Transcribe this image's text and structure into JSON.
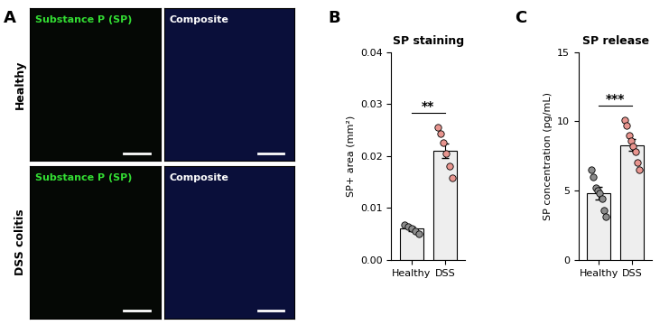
{
  "panel_labels": [
    "A",
    "B",
    "C"
  ],
  "image_panel": {
    "columns": [
      "Substance P (SP)",
      "Composite"
    ],
    "rows": [
      "Healthy",
      "DSS colitis"
    ]
  },
  "chart_data": [
    {
      "type": "bar",
      "title": "SP staining",
      "y_label": "SP+ area (mm²)",
      "categories": [
        "Healthy",
        "DSS"
      ],
      "values": [
        0.006,
        0.021
      ],
      "errors": [
        0.0005,
        0.0014
      ],
      "points": [
        [
          0.0068,
          0.0064,
          0.006,
          0.0055,
          0.005
        ],
        [
          0.0255,
          0.0243,
          0.0225,
          0.0205,
          0.018,
          0.0158
        ]
      ],
      "color": "#eeeeee",
      "colors": [
        "#8c8c8c",
        "#e8958f"
      ],
      "significance": "**",
      "ylim": [
        0,
        0.04
      ],
      "yticks": [
        {
          "value": 0,
          "label": "0.00"
        },
        0.01,
        0.02,
        0.03,
        0.04
      ]
    },
    {
      "type": "bar",
      "title": "SP release",
      "y_label": "SP concentration (pg/mL)",
      "categories": [
        "Healthy",
        "DSS"
      ],
      "values": [
        4.8,
        8.3
      ],
      "errors": [
        0.45,
        0.4
      ],
      "points": [
        [
          6.5,
          6.0,
          5.2,
          5.0,
          4.8,
          4.4,
          3.6,
          3.1
        ],
        [
          10.1,
          9.7,
          9.0,
          8.6,
          8.2,
          7.8,
          7.0,
          6.5
        ]
      ],
      "color": "#eeeeee",
      "colors": [
        "#8c8c8c",
        "#e8958f"
      ],
      "significance": "***",
      "ylim": [
        0,
        15
      ],
      "yticks": [
        0,
        5,
        10,
        15
      ]
    }
  ]
}
